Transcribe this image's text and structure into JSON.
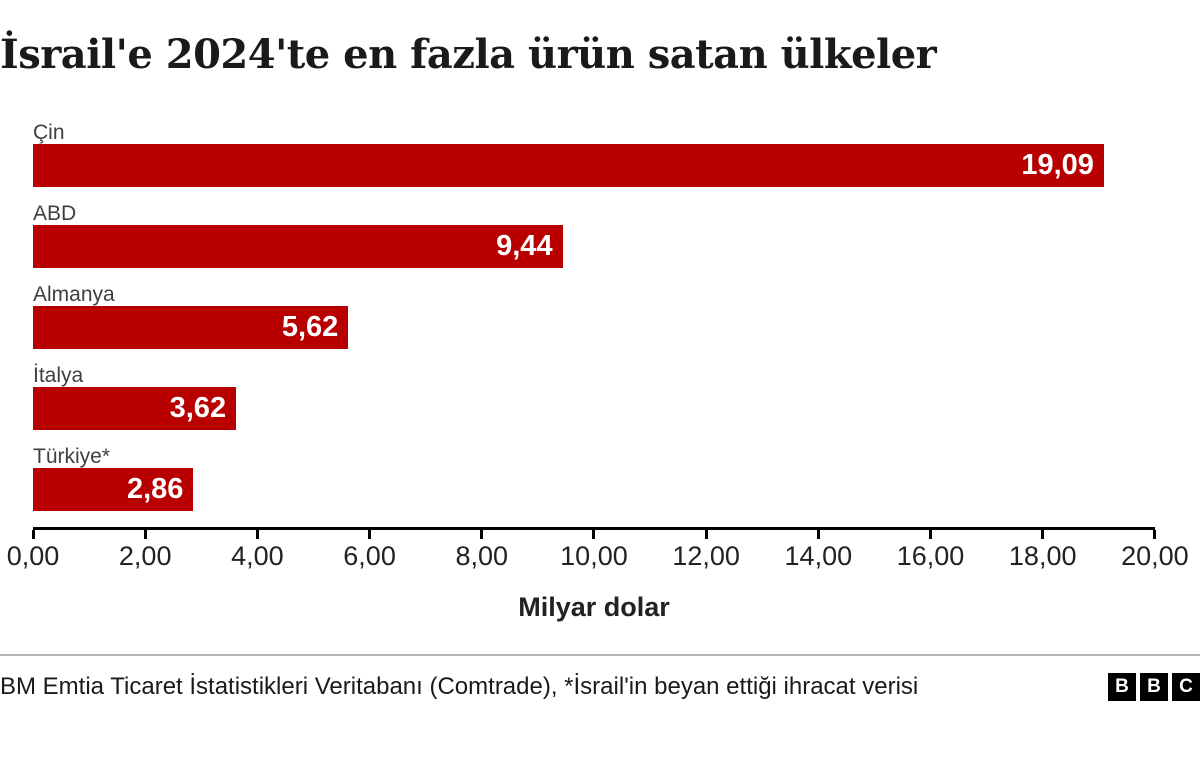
{
  "title": "İsrail'e 2024'te en fazla ürün satan ülkeler",
  "chart_data": {
    "type": "bar",
    "orientation": "horizontal",
    "title": "İsrail'e 2024'te en fazla ürün satan ülkeler",
    "categories": [
      "Çin",
      "ABD",
      "Almanya",
      "İtalya",
      "Türkiye*"
    ],
    "values": [
      19.09,
      9.44,
      5.62,
      3.62,
      2.86
    ],
    "value_labels": [
      "19,09",
      "9,44",
      "5,62",
      "3,62",
      "2,86"
    ],
    "xlabel": "Milyar dolar",
    "ylabel": "",
    "xlim": [
      0,
      20
    ],
    "tick_step": 2,
    "tick_labels": [
      "0,00",
      "2,00",
      "4,00",
      "6,00",
      "8,00",
      "10,00",
      "12,00",
      "14,00",
      "16,00",
      "18,00",
      "20,00"
    ],
    "grid": false,
    "legend": false,
    "bar_color": "#b80000",
    "value_label_color": "#ffffff",
    "category_label_color": "#3f3f3f"
  },
  "footer": {
    "source": "BM Emtia Ticaret İstatistikleri Veritabanı (Comtrade), *İsrail'in beyan ettiği ihracat verisi",
    "logo": {
      "letters": [
        "B",
        "B",
        "C"
      ],
      "color": "#000000"
    }
  }
}
